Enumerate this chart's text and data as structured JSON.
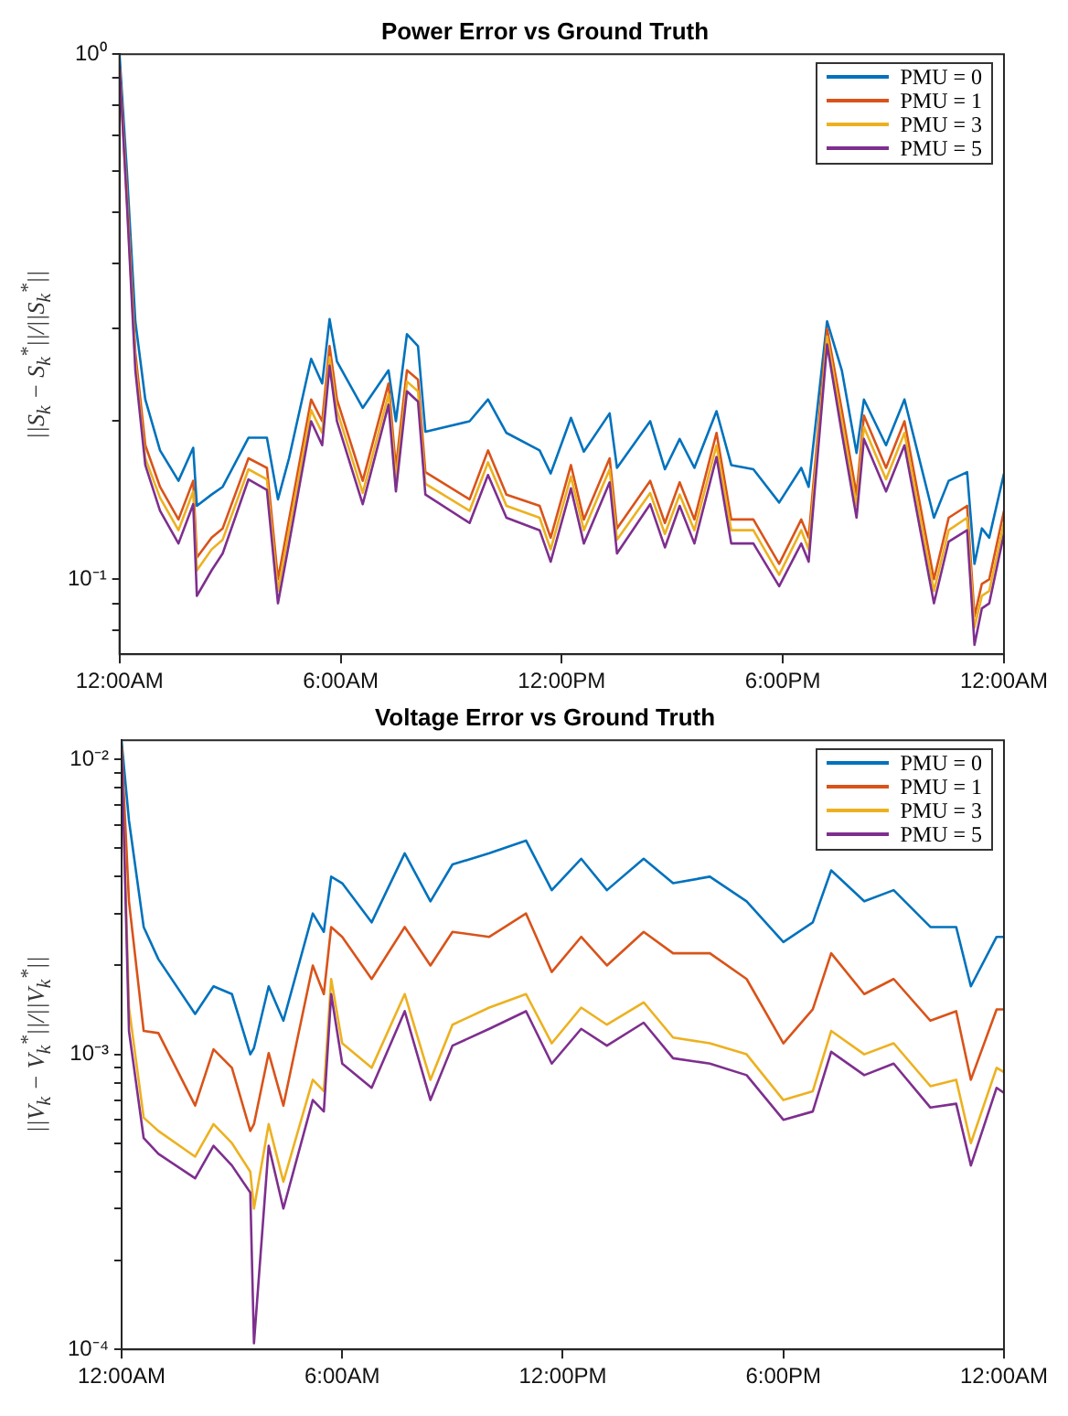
{
  "chart_data": [
    {
      "type": "line",
      "title": "Power Error vs Ground Truth",
      "ylabel": "||S$_{k}$ − S$_{k}$$^{*}$||/||S$_{k}$$^{*}$||",
      "log": "y",
      "legend": "top right",
      "x": [
        0,
        0.2,
        0.43,
        0.7,
        1.1,
        1.6,
        2,
        2.1,
        2.5,
        2.8,
        3.5,
        4,
        4.3,
        4.6,
        5.2,
        5.5,
        5.7,
        5.9,
        6.6,
        7.3,
        7.5,
        7.8,
        8.1,
        8.3,
        9.5,
        10,
        10.5,
        11.4,
        11.7,
        12.25,
        12.6,
        13.3,
        13.5,
        14.4,
        14.8,
        15.2,
        15.6,
        16.2,
        16.6,
        17.2,
        17.9,
        18.5,
        18.7,
        19.2,
        19.6,
        20,
        20.2,
        20.8,
        21.3,
        22.1,
        22.5,
        23,
        23.2,
        23.4,
        23.6,
        24
      ],
      "xlim": [
        0,
        24
      ],
      "xticks": [
        {
          "value": 0,
          "label": "12:00AM"
        },
        {
          "value": 6,
          "label": "6:00AM"
        },
        {
          "value": 12,
          "label": "12:00PM"
        },
        {
          "value": 18,
          "label": "6:00PM"
        },
        {
          "value": 24,
          "label": "12:00AM"
        }
      ],
      "ylim": [
        0.072,
        1
      ],
      "yticks": [
        {
          "value": 0.08,
          "label": null
        },
        {
          "value": 0.09,
          "label": null
        },
        {
          "value": 0.1,
          "label": "10⁻¹"
        },
        {
          "value": 0.2,
          "label": null
        },
        {
          "value": 0.3,
          "label": null
        },
        {
          "value": 0.4,
          "label": null
        },
        {
          "value": 0.5,
          "label": null
        },
        {
          "value": 0.6,
          "label": null
        },
        {
          "value": 0.7,
          "label": null
        },
        {
          "value": 0.8,
          "label": null
        },
        {
          "value": 0.9,
          "label": null
        },
        {
          "value": 1,
          "label": "10⁰"
        }
      ],
      "series": [
        {
          "name": "PMU = 0",
          "color": "#0072bd",
          "values": [
            1.0,
            0.6,
            0.31,
            0.22,
            0.176,
            0.154,
            0.178,
            0.138,
            0.145,
            0.15,
            0.186,
            0.186,
            0.142,
            0.17,
            0.263,
            0.236,
            0.313,
            0.26,
            0.212,
            0.25,
            0.2,
            0.293,
            0.278,
            0.191,
            0.2,
            0.22,
            0.19,
            0.176,
            0.159,
            0.203,
            0.175,
            0.207,
            0.163,
            0.2,
            0.162,
            0.185,
            0.163,
            0.209,
            0.165,
            0.162,
            0.14,
            0.163,
            0.15,
            0.31,
            0.25,
            0.174,
            0.22,
            0.18,
            0.22,
            0.131,
            0.154,
            0.16,
            0.107,
            0.125,
            0.12,
            0.159
          ]
        },
        {
          "name": "PMU = 1",
          "color": "#d95319",
          "values": [
            0.95,
            0.55,
            0.27,
            0.18,
            0.15,
            0.13,
            0.154,
            0.11,
            0.12,
            0.125,
            0.17,
            0.163,
            0.1,
            0.13,
            0.22,
            0.2,
            0.278,
            0.22,
            0.154,
            0.236,
            0.163,
            0.25,
            0.24,
            0.16,
            0.142,
            0.176,
            0.145,
            0.138,
            0.12,
            0.165,
            0.13,
            0.17,
            0.125,
            0.154,
            0.128,
            0.153,
            0.13,
            0.19,
            0.13,
            0.13,
            0.107,
            0.13,
            0.12,
            0.3,
            0.21,
            0.145,
            0.205,
            0.163,
            0.2,
            0.1,
            0.131,
            0.138,
            0.085,
            0.098,
            0.1,
            0.135
          ]
        },
        {
          "name": "PMU = 3",
          "color": "#edb120",
          "values": [
            0.95,
            0.53,
            0.26,
            0.17,
            0.143,
            0.124,
            0.147,
            0.104,
            0.114,
            0.119,
            0.162,
            0.155,
            0.095,
            0.124,
            0.21,
            0.19,
            0.265,
            0.21,
            0.146,
            0.225,
            0.155,
            0.238,
            0.228,
            0.152,
            0.135,
            0.167,
            0.138,
            0.131,
            0.114,
            0.157,
            0.124,
            0.162,
            0.119,
            0.146,
            0.122,
            0.145,
            0.124,
            0.18,
            0.124,
            0.124,
            0.102,
            0.124,
            0.114,
            0.29,
            0.2,
            0.138,
            0.195,
            0.155,
            0.19,
            0.095,
            0.124,
            0.131,
            0.081,
            0.093,
            0.095,
            0.128
          ]
        },
        {
          "name": "PMU = 5",
          "color": "#7e2f8e",
          "values": [
            0.95,
            0.52,
            0.25,
            0.165,
            0.135,
            0.117,
            0.139,
            0.093,
            0.104,
            0.112,
            0.155,
            0.148,
            0.09,
            0.117,
            0.2,
            0.18,
            0.255,
            0.2,
            0.139,
            0.215,
            0.147,
            0.228,
            0.218,
            0.145,
            0.128,
            0.158,
            0.131,
            0.124,
            0.108,
            0.149,
            0.117,
            0.153,
            0.112,
            0.139,
            0.115,
            0.138,
            0.117,
            0.171,
            0.117,
            0.117,
            0.097,
            0.117,
            0.108,
            0.28,
            0.19,
            0.131,
            0.185,
            0.147,
            0.18,
            0.09,
            0.118,
            0.124,
            0.075,
            0.088,
            0.09,
            0.122
          ]
        }
      ]
    },
    {
      "type": "line",
      "title": "Voltage Error vs Ground Truth",
      "ylabel": "||V$_{k}$ − V$_{k}$$^{*}$||/||V$_{k}$$^{*}$||",
      "log": "y",
      "legend": "top right",
      "x": [
        0,
        0.2,
        0.6,
        1,
        2,
        2.5,
        3,
        3.5,
        3.6,
        4,
        4.4,
        5.2,
        5.5,
        5.7,
        6,
        6.8,
        7.7,
        8.4,
        9,
        10,
        11,
        11.7,
        12.5,
        13.2,
        14.2,
        15,
        16,
        17,
        18,
        18.8,
        19.3,
        20.2,
        21,
        22,
        22.7,
        23.1,
        23.8,
        24
      ],
      "xlim": [
        0,
        24
      ],
      "xticks": [
        {
          "value": 0,
          "label": "12:00AM"
        },
        {
          "value": 6,
          "label": "6:00AM"
        },
        {
          "value": 12,
          "label": "12:00PM"
        },
        {
          "value": 18,
          "label": "6:00PM"
        },
        {
          "value": 24,
          "label": "12:00AM"
        }
      ],
      "ylim": [
        0.0001,
        0.0116
      ],
      "yticks": [
        {
          "value": 0.0001,
          "label": "10⁻⁴"
        },
        {
          "value": 0.0002,
          "label": null
        },
        {
          "value": 0.0003,
          "label": null
        },
        {
          "value": 0.0004,
          "label": null
        },
        {
          "value": 0.0005,
          "label": null
        },
        {
          "value": 0.0006,
          "label": null
        },
        {
          "value": 0.0007,
          "label": null
        },
        {
          "value": 0.0008,
          "label": null
        },
        {
          "value": 0.0009,
          "label": null
        },
        {
          "value": 0.001,
          "label": "10⁻³"
        },
        {
          "value": 0.002,
          "label": null
        },
        {
          "value": 0.003,
          "label": null
        },
        {
          "value": 0.004,
          "label": null
        },
        {
          "value": 0.005,
          "label": null
        },
        {
          "value": 0.006,
          "label": null
        },
        {
          "value": 0.007,
          "label": null
        },
        {
          "value": 0.008,
          "label": null
        },
        {
          "value": 0.009,
          "label": null
        },
        {
          "value": 0.01,
          "label": "10⁻²"
        }
      ],
      "series": [
        {
          "name": "PMU = 0",
          "color": "#0072bd",
          "values": [
            0.0115,
            0.0062,
            0.0027,
            0.0021,
            0.00137,
            0.0017,
            0.0016,
            0.001,
            0.00105,
            0.0017,
            0.0013,
            0.003,
            0.0026,
            0.004,
            0.0038,
            0.0028,
            0.0048,
            0.0033,
            0.0044,
            0.0048,
            0.0053,
            0.0036,
            0.0046,
            0.0036,
            0.0046,
            0.0038,
            0.004,
            0.0033,
            0.0024,
            0.0028,
            0.0042,
            0.0033,
            0.0036,
            0.0027,
            0.0027,
            0.0017,
            0.0025,
            0.0025
          ]
        },
        {
          "name": "PMU = 1",
          "color": "#d95319",
          "values": [
            0.011,
            0.0033,
            0.0012,
            0.00118,
            0.00067,
            0.00104,
            0.0009,
            0.00055,
            0.00058,
            0.00101,
            0.00067,
            0.002,
            0.0016,
            0.0027,
            0.0025,
            0.0018,
            0.0027,
            0.002,
            0.0026,
            0.0025,
            0.003,
            0.0019,
            0.0025,
            0.002,
            0.0026,
            0.0022,
            0.0022,
            0.0018,
            0.00109,
            0.00142,
            0.0022,
            0.0016,
            0.0018,
            0.0013,
            0.0014,
            0.00082,
            0.00142,
            0.00142
          ]
        },
        {
          "name": "PMU = 3",
          "color": "#edb120",
          "values": [
            0.011,
            0.00144,
            0.00061,
            0.00055,
            0.00045,
            0.00058,
            0.0005,
            0.0004,
            0.0003,
            0.00058,
            0.00037,
            0.00082,
            0.00075,
            0.0018,
            0.00109,
            0.0009,
            0.0016,
            0.00082,
            0.00126,
            0.00144,
            0.0016,
            0.00109,
            0.00144,
            0.00126,
            0.0015,
            0.00114,
            0.00109,
            0.001,
            0.0007,
            0.00075,
            0.0012,
            0.001,
            0.00109,
            0.00078,
            0.00082,
            0.0005,
            0.0009,
            0.00087
          ]
        },
        {
          "name": "PMU = 5",
          "color": "#7e2f8e",
          "values": [
            0.011,
            0.0012,
            0.00052,
            0.00046,
            0.00038,
            0.00049,
            0.00042,
            0.00034,
            0.000105,
            0.00049,
            0.0003,
            0.0007,
            0.00064,
            0.0016,
            0.00093,
            0.00077,
            0.0014,
            0.0007,
            0.00107,
            0.00122,
            0.0014,
            0.00093,
            0.00122,
            0.00107,
            0.00128,
            0.00097,
            0.00093,
            0.00085,
            0.0006,
            0.00064,
            0.00102,
            0.00085,
            0.00093,
            0.00066,
            0.00068,
            0.00042,
            0.00077,
            0.00074
          ]
        }
      ]
    }
  ]
}
